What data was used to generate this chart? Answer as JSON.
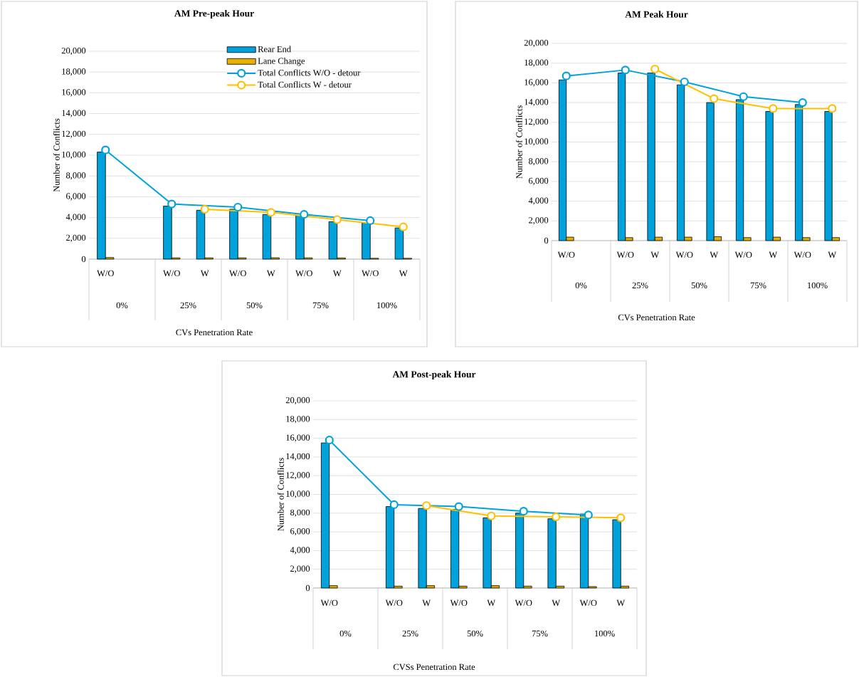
{
  "chart_data": [
    {
      "type": "bar",
      "title": "AM Pre-peak Hour",
      "xlabel": "CVs Penetration Rate",
      "ylabel": "Number of Conflicts",
      "categories": [
        "W/O",
        null,
        "W/O",
        "W",
        "W/O",
        "W",
        "W/O",
        "W",
        "W/O",
        "W"
      ],
      "annotations": [
        "0%",
        "25%",
        "50%",
        "75%",
        "100%"
      ],
      "series": [
        {
          "name": "Rear End",
          "color": "#00a2dc",
          "values": [
            10300,
            null,
            5100,
            4700,
            4800,
            4300,
            4200,
            3600,
            3500,
            3000
          ]
        },
        {
          "name": "Lane Change",
          "color": "#e8b000",
          "values": [
            150,
            null,
            120,
            120,
            120,
            130,
            120,
            110,
            80,
            80
          ]
        },
        {
          "name": "Total Conflicts W/O - detour",
          "type": "line",
          "color": "#00a2dc",
          "values": [
            10500,
            null,
            5300,
            null,
            5000,
            null,
            4300,
            null,
            3700,
            null
          ]
        },
        {
          "name": "Total Conflicts W - detour",
          "type": "line",
          "color": "#ffc000",
          "values": [
            null,
            null,
            null,
            4800,
            null,
            4500,
            null,
            3800,
            null,
            3100
          ]
        }
      ],
      "ylim": [
        0,
        20000
      ],
      "yticks": [
        {
          "value": 0,
          "label": "0"
        },
        {
          "value": 2000,
          "label": "2,000"
        },
        {
          "value": 4000,
          "label": "4,000"
        },
        {
          "value": 6000,
          "label": "6,000"
        },
        {
          "value": 8000,
          "label": "8,000"
        },
        {
          "value": 10000,
          "label": "10,000"
        },
        {
          "value": 12000,
          "label": "12,000"
        },
        {
          "value": 14000,
          "label": "14,000"
        },
        {
          "value": 16000,
          "label": "16,000"
        },
        {
          "value": 18000,
          "label": "18,000"
        },
        {
          "value": 20000,
          "label": "20,000"
        }
      ],
      "grid": "y",
      "legend": "top",
      "marker": "circle"
    },
    {
      "type": "bar",
      "title": "AM Peak Hour",
      "xlabel": "CVs Penetration Rate",
      "ylabel": "Number of Conflicts",
      "categories": [
        "W/O",
        null,
        "W/O",
        "W",
        "W/O",
        "W",
        "W/O",
        "W",
        "W/O",
        "W"
      ],
      "annotations": [
        "0%",
        "25%",
        "50%",
        "75%",
        "100%"
      ],
      "series": [
        {
          "color": "#00a2dc",
          "values": [
            16300,
            null,
            17000,
            17000,
            15800,
            14000,
            14300,
            13100,
            13800,
            13100
          ]
        },
        {
          "color": "#e8b000",
          "values": [
            350,
            null,
            300,
            350,
            350,
            400,
            300,
            350,
            300,
            300
          ]
        },
        {
          "type": "line",
          "color": "#00a2dc",
          "values": [
            16700,
            null,
            17300,
            null,
            16100,
            null,
            14600,
            null,
            14000,
            null
          ]
        },
        {
          "type": "line",
          "color": "#ffc000",
          "values": [
            null,
            null,
            null,
            17400,
            null,
            14400,
            null,
            13400,
            null,
            13400
          ]
        }
      ],
      "ylim": [
        0,
        20000
      ],
      "yticks": [
        {
          "value": 0,
          "label": "0"
        },
        {
          "value": 2000,
          "label": "2,000"
        },
        {
          "value": 4000,
          "label": "4,000"
        },
        {
          "value": 6000,
          "label": "6,000"
        },
        {
          "value": 8000,
          "label": "8,000"
        },
        {
          "value": 10000,
          "label": "10,000"
        },
        {
          "value": 12000,
          "label": "12,000"
        },
        {
          "value": 14000,
          "label": "14,000"
        },
        {
          "value": 16000,
          "label": "16,000"
        },
        {
          "value": 18000,
          "label": "18,000"
        },
        {
          "value": 20000,
          "label": "20,000"
        }
      ],
      "grid": "y",
      "marker": "circle"
    },
    {
      "type": "bar",
      "title": "AM Post-peak Hour",
      "xlabel": "CVSs Penetration Rate",
      "ylabel": "Number of Conflicts",
      "categories": [
        "W/O",
        null,
        "W/O",
        "W",
        "W/O",
        "W",
        "W/O",
        "W",
        "W/O",
        "W"
      ],
      "annotations": [
        "0%",
        "25%",
        "50%",
        "75%",
        "100%"
      ],
      "series": [
        {
          "color": "#00a2dc",
          "values": [
            15500,
            null,
            8700,
            8500,
            8400,
            7500,
            8000,
            7400,
            7900,
            7300
          ]
        },
        {
          "color": "#e8b000",
          "values": [
            250,
            null,
            200,
            250,
            200,
            250,
            200,
            200,
            150,
            200
          ]
        },
        {
          "type": "line",
          "color": "#00a2dc",
          "values": [
            15800,
            null,
            8900,
            null,
            8700,
            null,
            8200,
            null,
            7800,
            null
          ]
        },
        {
          "type": "line",
          "color": "#ffc000",
          "values": [
            null,
            null,
            null,
            8800,
            null,
            7700,
            null,
            7600,
            null,
            7500
          ]
        }
      ],
      "ylim": [
        0,
        20000
      ],
      "yticks": [
        {
          "value": 0,
          "label": "0"
        },
        {
          "value": 2000,
          "label": "2,000"
        },
        {
          "value": 4000,
          "label": "4,000"
        },
        {
          "value": 6000,
          "label": "6,000"
        },
        {
          "value": 8000,
          "label": "8,000"
        },
        {
          "value": 10000,
          "label": "10,000"
        },
        {
          "value": 12000,
          "label": "12,000"
        },
        {
          "value": 14000,
          "label": "14,000"
        },
        {
          "value": 16000,
          "label": "16,000"
        },
        {
          "value": 18000,
          "label": "18,000"
        },
        {
          "value": 20000,
          "label": "20,000"
        }
      ],
      "grid": "y",
      "marker": "circle"
    }
  ]
}
